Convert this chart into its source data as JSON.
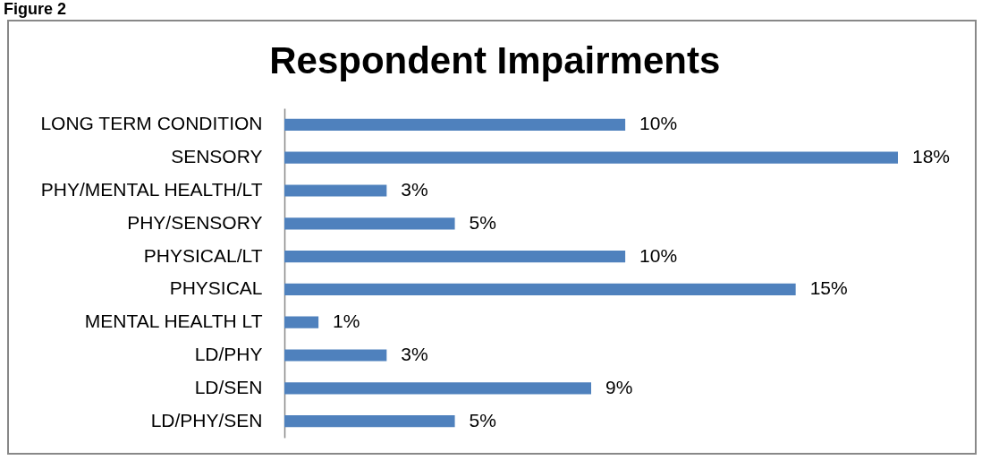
{
  "chart_data": {
    "type": "bar",
    "orientation": "horizontal",
    "title": "Respondent Impairments",
    "annotations": [
      "Figure 2"
    ],
    "categories": [
      "LONG TERM CONDITION",
      "SENSORY",
      "PHY/MENTAL HEALTH/LT",
      "PHY/SENSORY",
      "PHYSICAL/LT",
      "PHYSICAL",
      "MENTAL HEALTH LT",
      "LD/PHY",
      "LD/SEN",
      "LD/PHY/SEN"
    ],
    "values": [
      10,
      18,
      3,
      5,
      10,
      15,
      1,
      3,
      9,
      5
    ],
    "value_labels": [
      "10%",
      "18%",
      "3%",
      "5%",
      "10%",
      "15%",
      "1%",
      "3%",
      "9%",
      "5%"
    ],
    "color": "#4f81bd"
  }
}
